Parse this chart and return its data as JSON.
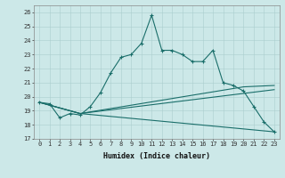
{
  "xlabel": "Humidex (Indice chaleur)",
  "background_color": "#cce8e8",
  "line_color": "#1a6e6a",
  "xlim": [
    -0.5,
    23.5
  ],
  "ylim": [
    17,
    26.5
  ],
  "yticks": [
    17,
    18,
    19,
    20,
    21,
    22,
    23,
    24,
    25,
    26
  ],
  "xticks": [
    0,
    1,
    2,
    3,
    4,
    5,
    6,
    7,
    8,
    9,
    10,
    11,
    12,
    13,
    14,
    15,
    16,
    17,
    18,
    19,
    20,
    21,
    22,
    23
  ],
  "series1_x": [
    0,
    1,
    2,
    3,
    4,
    5,
    6,
    7,
    8,
    9,
    10,
    11,
    12,
    13,
    14,
    15,
    16,
    17,
    18,
    19,
    20,
    21,
    22,
    23
  ],
  "series1_y": [
    19.6,
    19.5,
    18.5,
    18.8,
    18.7,
    19.3,
    20.3,
    21.7,
    22.8,
    23.0,
    23.8,
    25.8,
    23.3,
    23.3,
    23.0,
    22.5,
    22.5,
    23.3,
    21.0,
    20.8,
    20.4,
    19.3,
    18.2,
    17.5
  ],
  "series2_x": [
    0,
    4,
    23
  ],
  "series2_y": [
    19.6,
    18.8,
    20.5
  ],
  "series3_x": [
    0,
    4,
    20,
    23
  ],
  "series3_y": [
    19.6,
    18.8,
    20.7,
    20.8
  ],
  "series4_x": [
    0,
    4,
    23
  ],
  "series4_y": [
    19.6,
    18.8,
    17.5
  ],
  "grid_color": "#aacece"
}
